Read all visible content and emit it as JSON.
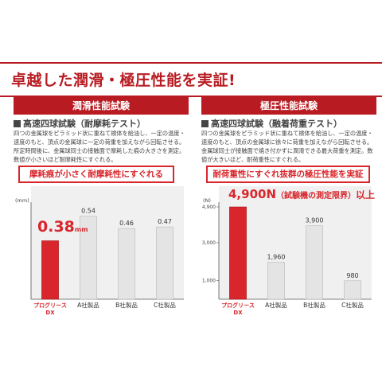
{
  "headline": "卓越した潤滑・極圧性能を実証!",
  "left_panel": {
    "title": "潤滑性能試験",
    "subhead": "高速四球試験（耐摩耗テスト）",
    "description": "四つの金属球をピラミッド状に重ねて検体を給油し、一定の温度・速度のもと、頂点の金属球に一定の荷重を加えながら回転させる。所定時間後に、金属球同士の接触面で摩耗した痕の大きさを測定。数値が小さいほど耐摩耗性にすぐれる。",
    "callout": "摩耗痕が小さく耐摩耗性にすぐれる",
    "highlight_value": "0.38",
    "highlight_unit": "mm"
  },
  "right_panel": {
    "title": "極圧性能試験",
    "subhead": "高速四球試験（融着荷重テスト）",
    "description": "四つの金属球をピラミッド状に重ねて検体を給油し、一定の温度・速度のもと、頂点の金属球に徐々に荷重を加えながら回転させる。金属球同士が接触面で焼き付かずに潤滑できる最大荷重を測定。数値が大きいほど、耐荷重性にすぐれる。",
    "callout": "耐荷重性にすぐれ抜群の極圧性能を実証",
    "highlight_value": "4,900N",
    "highlight_note": "（試験機の測定限界）",
    "highlight_suffix": "以上"
  },
  "chart_data": [
    {
      "type": "bar",
      "ylabel": "(mm)",
      "ylim": [
        0,
        0.6
      ],
      "categories": [
        "プログリース DX",
        "A社製品",
        "B社製品",
        "C社製品"
      ],
      "category_lines": [
        [
          "プログリース",
          "DX"
        ],
        [
          "A社製品"
        ],
        [
          "B社製品"
        ],
        [
          "C社製品"
        ]
      ],
      "values": [
        0.38,
        0.54,
        0.46,
        0.47
      ],
      "value_labels": [
        "",
        "0.54",
        "0.46",
        "0.47"
      ],
      "highlight_index": 0,
      "highlight_color": "#d8262c",
      "bar_color": "#e4e4e4",
      "yticks": [],
      "background_color": "#f0f0f0"
    },
    {
      "type": "bar",
      "ylabel": "(N)",
      "ylim": [
        0,
        4900
      ],
      "categories": [
        "プログリース DX",
        "A社製品",
        "B社製品",
        "C社製品"
      ],
      "category_lines": [
        [
          "プログリース",
          "DX"
        ],
        [
          "A社製品"
        ],
        [
          "B社製品"
        ],
        [
          "C社製品"
        ]
      ],
      "values": [
        4900,
        1960,
        3900,
        980
      ],
      "value_labels": [
        "",
        "1,960",
        "3,900",
        "980"
      ],
      "highlight_index": 0,
      "highlight_color": "#d8262c",
      "bar_color": "#e4e4e4",
      "yticks": [
        1000,
        3000,
        4900
      ],
      "ytick_labels": [
        "1,000",
        "3,000",
        "4,900"
      ],
      "background_color": "#f0f0f0"
    }
  ]
}
